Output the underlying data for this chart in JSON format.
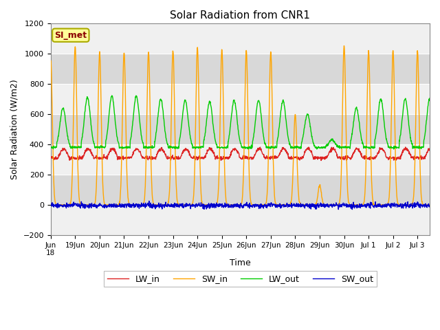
{
  "title": "Solar Radiation from CNR1",
  "xlabel": "Time",
  "ylabel": "Solar Radiation (W/m2)",
  "ylim": [
    -200,
    1200
  ],
  "yticks": [
    -200,
    0,
    200,
    400,
    600,
    800,
    1000,
    1200
  ],
  "background_color": "#ffffff",
  "plot_bg_color": "#d8d8d8",
  "grid_color": "#ffffff",
  "band_color_light": "#f0f0f0",
  "band_color_dark": "#d8d8d8",
  "series_colors": {
    "LW_in": "#dd2222",
    "SW_in": "#ffa500",
    "LW_out": "#00cc00",
    "SW_out": "#0000cc"
  },
  "legend_label": "SI_met",
  "legend_bg": "#ffff99",
  "legend_border": "#aaaa00",
  "n_days": 15.5,
  "figsize": [
    6.4,
    4.8
  ],
  "dpi": 100
}
